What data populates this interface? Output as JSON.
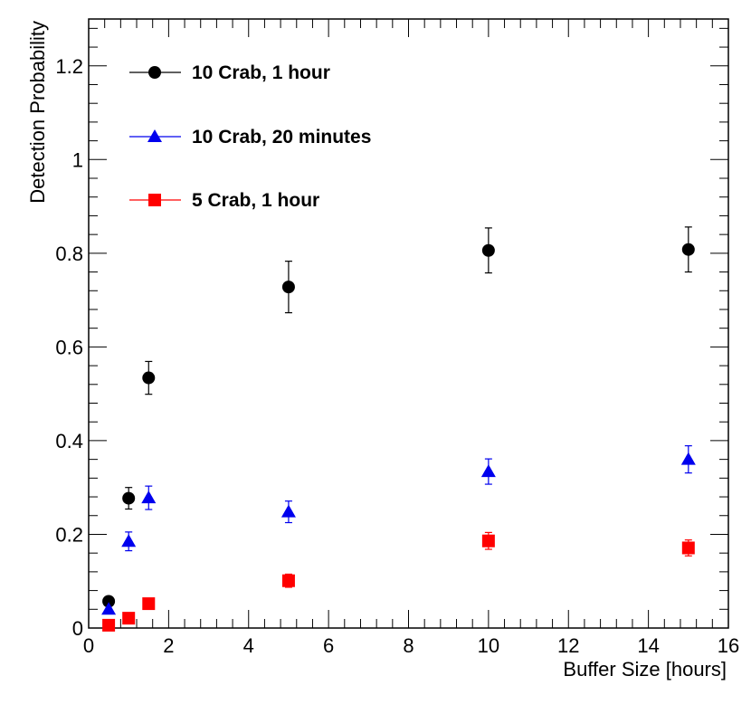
{
  "chart_data": {
    "type": "scatter",
    "title": "",
    "xlabel": "Buffer Size [hours]",
    "ylabel": "Detection Probability",
    "xlim": [
      0,
      16
    ],
    "ylim": [
      0,
      1.3
    ],
    "x_ticks": [
      "0",
      "2",
      "4",
      "6",
      "8",
      "10",
      "12",
      "14",
      "16"
    ],
    "y_ticks": [
      "0",
      "0.2",
      "0.4",
      "0.6",
      "0.8",
      "1",
      "1.2"
    ],
    "grid": false,
    "legend_position": "top-left",
    "series": [
      {
        "name": "10 Crab, 1 hour",
        "color": "#000000",
        "marker": "circle",
        "points": [
          {
            "x": 0.5,
            "y": 0.057,
            "err": 0.0
          },
          {
            "x": 1.0,
            "y": 0.277,
            "err": 0.023
          },
          {
            "x": 1.5,
            "y": 0.534,
            "err": 0.035
          },
          {
            "x": 5.0,
            "y": 0.728,
            "err": 0.055
          },
          {
            "x": 10.0,
            "y": 0.806,
            "err": 0.048
          },
          {
            "x": 15.0,
            "y": 0.808,
            "err": 0.048
          }
        ]
      },
      {
        "name": "10 Crab, 20 minutes",
        "color": "#0000ee",
        "marker": "triangle",
        "points": [
          {
            "x": 0.5,
            "y": 0.04,
            "err": 0.0
          },
          {
            "x": 1.0,
            "y": 0.185,
            "err": 0.02
          },
          {
            "x": 1.5,
            "y": 0.278,
            "err": 0.025
          },
          {
            "x": 5.0,
            "y": 0.248,
            "err": 0.023
          },
          {
            "x": 10.0,
            "y": 0.334,
            "err": 0.027
          },
          {
            "x": 15.0,
            "y": 0.36,
            "err": 0.029
          }
        ]
      },
      {
        "name": "5 Crab, 1 hour",
        "color": "#ff0000",
        "marker": "square",
        "points": [
          {
            "x": 0.5,
            "y": 0.006,
            "err": 0.0
          },
          {
            "x": 1.0,
            "y": 0.021,
            "err": 0.0
          },
          {
            "x": 1.5,
            "y": 0.052,
            "err": 0.0
          },
          {
            "x": 5.0,
            "y": 0.101,
            "err": 0.014
          },
          {
            "x": 10.0,
            "y": 0.186,
            "err": 0.018
          },
          {
            "x": 15.0,
            "y": 0.171,
            "err": 0.017
          }
        ]
      }
    ]
  }
}
